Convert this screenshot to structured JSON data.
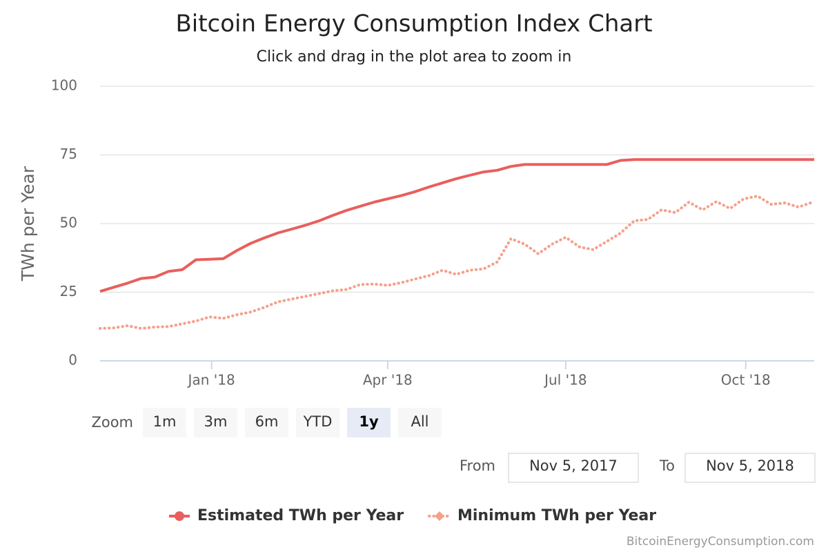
{
  "chart_data": {
    "type": "line",
    "title": "Bitcoin Energy Consumption Index Chart",
    "subtitle": "Click and drag in the plot area to zoom in",
    "y_label": "TWh per Year",
    "ylim": [
      0,
      100
    ],
    "yticks": [
      0,
      25,
      50,
      75,
      100
    ],
    "grid": true,
    "xlim": [
      "2017-11-05",
      "2018-11-05"
    ],
    "xticks": [
      {
        "value": "2018-01-01",
        "label": "Jan '18"
      },
      {
        "value": "2018-04-01",
        "label": "Apr '18"
      },
      {
        "value": "2018-07-01",
        "label": "Jul '18"
      },
      {
        "value": "2018-10-01",
        "label": "Oct '18"
      }
    ],
    "x": [
      "2017-11-05",
      "2017-11-12",
      "2017-11-19",
      "2017-11-26",
      "2017-12-03",
      "2017-12-10",
      "2017-12-17",
      "2017-12-24",
      "2017-12-31",
      "2018-01-07",
      "2018-01-14",
      "2018-01-21",
      "2018-01-28",
      "2018-02-04",
      "2018-02-11",
      "2018-02-18",
      "2018-02-25",
      "2018-03-04",
      "2018-03-11",
      "2018-03-18",
      "2018-03-25",
      "2018-04-01",
      "2018-04-08",
      "2018-04-15",
      "2018-04-22",
      "2018-04-29",
      "2018-05-06",
      "2018-05-13",
      "2018-05-20",
      "2018-05-27",
      "2018-06-03",
      "2018-06-10",
      "2018-06-17",
      "2018-06-24",
      "2018-07-01",
      "2018-07-08",
      "2018-07-15",
      "2018-07-22",
      "2018-07-29",
      "2018-08-05",
      "2018-08-12",
      "2018-08-19",
      "2018-08-26",
      "2018-09-02",
      "2018-09-09",
      "2018-09-16",
      "2018-09-23",
      "2018-09-30",
      "2018-10-07",
      "2018-10-14",
      "2018-10-21",
      "2018-10-28",
      "2018-11-05"
    ],
    "series": [
      {
        "name": "Estimated TWh per Year",
        "color": "#e95f5c",
        "dash": "solid",
        "marker": "circle",
        "values": [
          25.3,
          26.8,
          28.3,
          30.0,
          30.5,
          32.6,
          33.2,
          36.8,
          37.0,
          37.2,
          40.2,
          42.8,
          44.8,
          46.6,
          48.0,
          49.4,
          51.0,
          53.0,
          54.8,
          56.3,
          57.8,
          59.0,
          60.2,
          61.6,
          63.3,
          64.8,
          66.3,
          67.6,
          68.8,
          69.4,
          70.8,
          71.5,
          71.5,
          71.5,
          71.5,
          71.5,
          71.5,
          71.5,
          73.0,
          73.3,
          73.3,
          73.3,
          73.3,
          73.3,
          73.3,
          73.3,
          73.3,
          73.3,
          73.3,
          73.3,
          73.3,
          73.3,
          73.3
        ]
      },
      {
        "name": "Minimum TWh per Year",
        "color": "#f5a08a",
        "dash": "dot",
        "marker": "diamond",
        "values": [
          11.8,
          12.0,
          12.8,
          11.8,
          12.3,
          12.5,
          13.5,
          14.5,
          16.0,
          15.5,
          16.8,
          17.8,
          19.5,
          21.5,
          22.5,
          23.5,
          24.5,
          25.5,
          26.0,
          27.8,
          28.0,
          27.5,
          28.5,
          29.8,
          31.0,
          33.0,
          31.5,
          33.0,
          33.5,
          36.0,
          44.5,
          42.5,
          39.0,
          42.5,
          45.0,
          41.5,
          40.5,
          43.5,
          46.5,
          51.0,
          51.5,
          55.0,
          54.0,
          57.8,
          55.0,
          58.0,
          55.5,
          59.0,
          60.0,
          57.0,
          57.5,
          56.0,
          58.0
        ]
      }
    ],
    "range_selector": {
      "label": "Zoom",
      "buttons": [
        "1m",
        "3m",
        "6m",
        "YTD",
        "1y",
        "All"
      ],
      "selected": 4,
      "from_label": "From",
      "from": "Nov 5, 2017",
      "to_label": "To",
      "to": "Nov 5, 2018"
    },
    "credits": "BitcoinEnergyConsumption.com"
  }
}
